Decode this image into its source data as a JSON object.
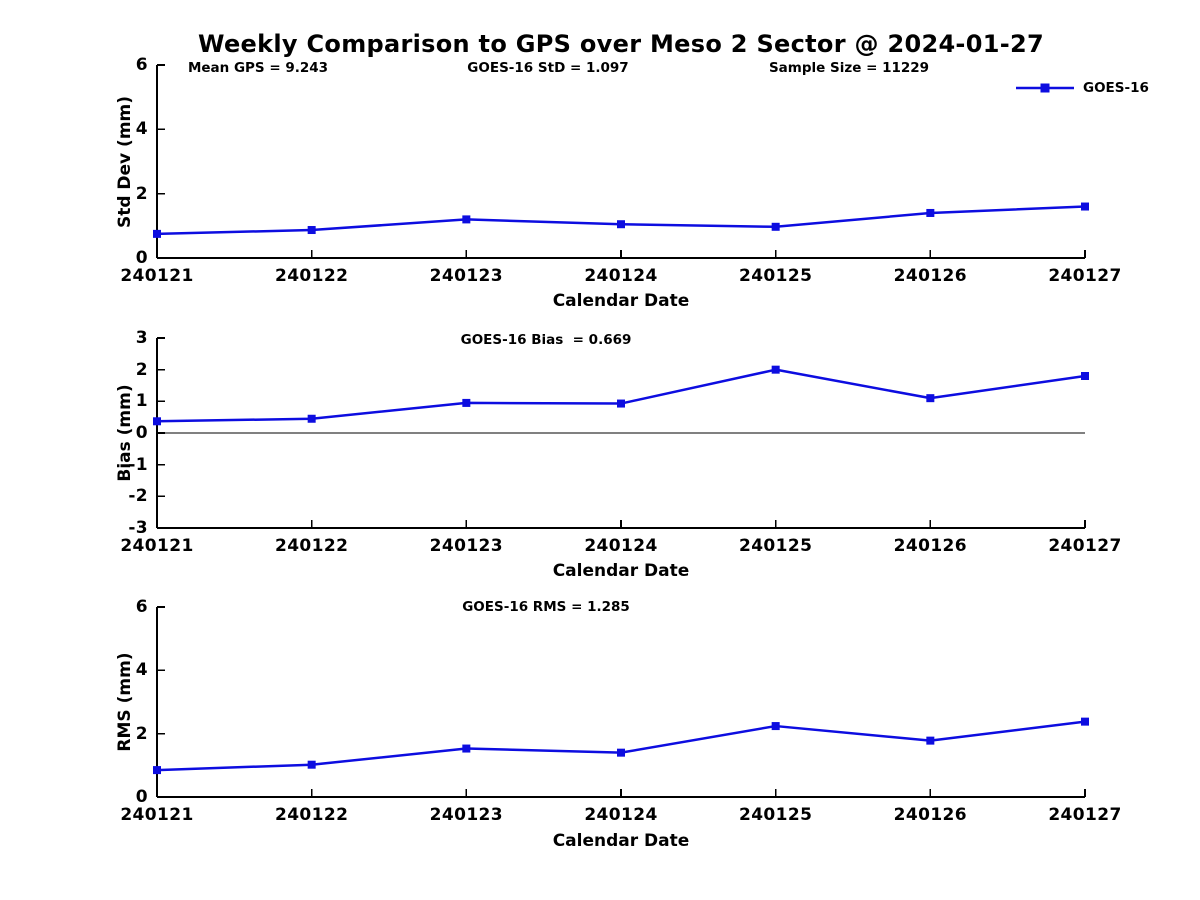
{
  "figure": {
    "title": "Weekly Comparison to GPS over Meso 2 Sector @ 2024-01-27",
    "annotations": [
      {
        "id": "mean-gps",
        "text": "Mean GPS = 9.243"
      },
      {
        "id": "goes16-std",
        "text": "GOES-16 StD = 1.097"
      },
      {
        "id": "sample-size",
        "text": "Sample Size = 11229"
      }
    ],
    "legend": {
      "label": "GOES-16",
      "marker": "square"
    }
  },
  "colors": {
    "line": "#0d0de0",
    "axis": "#000000",
    "zero_line": "#000000",
    "background": "#ffffff",
    "text": "#000000"
  },
  "chart_data": [
    {
      "type": "line",
      "id": "std-dev",
      "subtitle": "",
      "categories": [
        "240121",
        "240122",
        "240123",
        "240124",
        "240125",
        "240126",
        "240127"
      ],
      "series": [
        {
          "name": "GOES-16",
          "values": [
            0.75,
            0.87,
            1.2,
            1.05,
            0.97,
            1.4,
            1.6
          ]
        }
      ],
      "xlabel": "Calendar Date",
      "ylabel": "Std Dev (mm)",
      "ylim": [
        0,
        6
      ],
      "yticks": [
        0,
        2,
        4,
        6
      ],
      "grid": false,
      "zero_line": false,
      "legend_position": "upper-right-outside",
      "marker": "square"
    },
    {
      "type": "line",
      "id": "bias",
      "subtitle": "GOES-16 Bias  = 0.669",
      "categories": [
        "240121",
        "240122",
        "240123",
        "240124",
        "240125",
        "240126",
        "240127"
      ],
      "series": [
        {
          "name": "GOES-16",
          "values": [
            0.37,
            0.45,
            0.95,
            0.93,
            2.0,
            1.1,
            1.8
          ]
        }
      ],
      "xlabel": "Calendar Date",
      "ylabel": "Bias (mm)",
      "ylim": [
        -3,
        3
      ],
      "yticks": [
        -3,
        -2,
        -1,
        0,
        1,
        2,
        3
      ],
      "grid": false,
      "zero_line": true,
      "marker": "square"
    },
    {
      "type": "line",
      "id": "rms",
      "subtitle": "GOES-16 RMS = 1.285",
      "categories": [
        "240121",
        "240122",
        "240123",
        "240124",
        "240125",
        "240126",
        "240127"
      ],
      "series": [
        {
          "name": "GOES-16",
          "values": [
            0.85,
            1.02,
            1.53,
            1.4,
            2.24,
            1.78,
            2.38
          ]
        }
      ],
      "xlabel": "Calendar Date",
      "ylabel": "RMS (mm)",
      "ylim": [
        0,
        6
      ],
      "yticks": [
        0,
        2,
        4,
        6
      ],
      "grid": false,
      "zero_line": false,
      "marker": "square"
    }
  ]
}
